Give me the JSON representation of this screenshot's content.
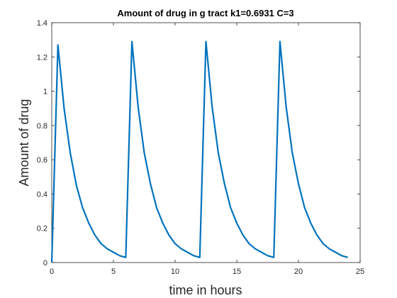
{
  "chart_data": {
    "type": "line",
    "title": "Amount of drug in g tract k1=0.6931 C=3",
    "xlabel": "time in hours",
    "ylabel": "Amount of drug",
    "xlim": [
      0,
      25
    ],
    "ylim": [
      0,
      1.4
    ],
    "x_ticks": [
      "0",
      "5",
      "10",
      "15",
      "20",
      "25"
    ],
    "y_ticks": [
      "0",
      "0.2",
      "0.4",
      "0.6",
      "0.8",
      "1",
      "1.2",
      "1.4"
    ],
    "grid": false,
    "line_color": "#0072BD",
    "series": [
      {
        "x": [
          0,
          0.5,
          1,
          1.5,
          2,
          2.5,
          3,
          3.5,
          4,
          4.5,
          5,
          5.5,
          6,
          6.5,
          7,
          7.5,
          8,
          8.5,
          9,
          9.5,
          10,
          10.5,
          11,
          11.5,
          12,
          12.5,
          13,
          13.5,
          14,
          14.5,
          15,
          15.5,
          16,
          16.5,
          17,
          17.5,
          18,
          18.5,
          19,
          19.5,
          20,
          20.5,
          21,
          21.5,
          22,
          22.5,
          23,
          23.5,
          24
        ],
        "values": [
          0,
          1.27,
          0.9,
          0.64,
          0.45,
          0.32,
          0.23,
          0.16,
          0.11,
          0.08,
          0.06,
          0.04,
          0.03,
          1.29,
          0.91,
          0.64,
          0.46,
          0.32,
          0.23,
          0.16,
          0.11,
          0.08,
          0.06,
          0.04,
          0.03,
          1.29,
          0.91,
          0.64,
          0.46,
          0.32,
          0.23,
          0.16,
          0.11,
          0.08,
          0.06,
          0.04,
          0.03,
          1.29,
          0.91,
          0.64,
          0.46,
          0.32,
          0.23,
          0.16,
          0.11,
          0.08,
          0.06,
          0.04,
          0.03
        ]
      }
    ]
  }
}
